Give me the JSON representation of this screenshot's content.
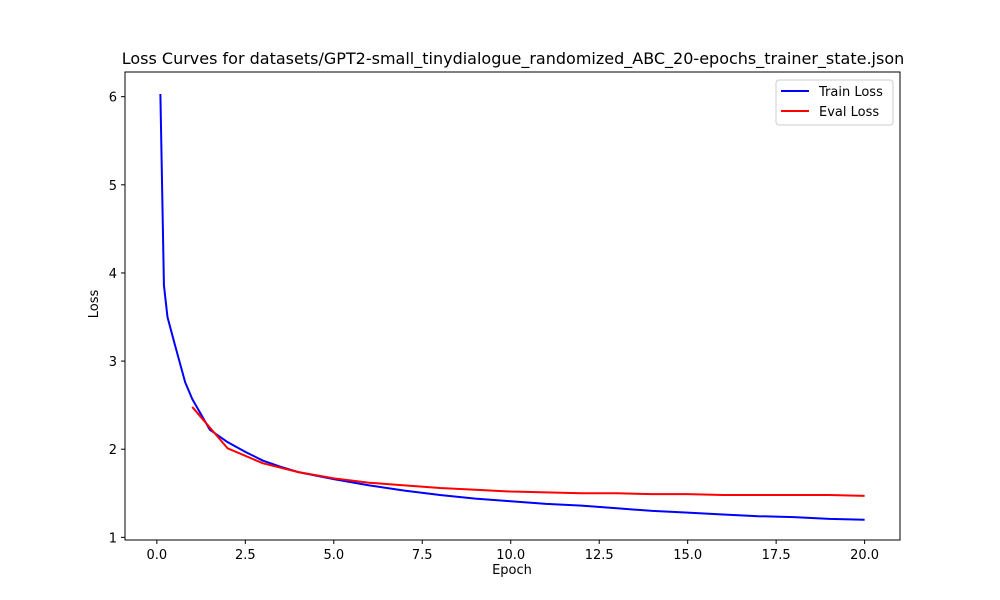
{
  "chart_data": {
    "type": "line",
    "title": "Loss Curves for datasets/GPT2-small_tinydialogue_randomized_ABC_20-epochs_trainer_state.json",
    "xlabel": "Epoch",
    "ylabel": "Loss",
    "xlim": [
      -0.9,
      21.0
    ],
    "ylim": [
      0.97,
      6.28
    ],
    "x_ticks": [
      0.0,
      2.5,
      5.0,
      7.5,
      10.0,
      12.5,
      15.0,
      17.5,
      20.0
    ],
    "x_tick_labels": [
      "0.0",
      "2.5",
      "5.0",
      "7.5",
      "10.0",
      "12.5",
      "15.0",
      "17.5",
      "20.0"
    ],
    "y_ticks": [
      1,
      2,
      3,
      4,
      5,
      6
    ],
    "y_tick_labels": [
      "1",
      "2",
      "3",
      "4",
      "5",
      "6"
    ],
    "grid": false,
    "legend_position": "top-right",
    "series": [
      {
        "name": "Train Loss",
        "color": "#0000ff",
        "x": [
          0.1,
          0.2,
          0.3,
          0.5,
          0.8,
          1.0,
          1.5,
          2.0,
          2.5,
          3.0,
          3.5,
          4.0,
          4.5,
          5.0,
          6.0,
          7.0,
          8.0,
          9.0,
          10.0,
          11.0,
          12.0,
          13.0,
          14.0,
          15.0,
          16.0,
          17.0,
          18.0,
          19.0,
          20.0
        ],
        "values": [
          6.03,
          3.86,
          3.5,
          3.2,
          2.76,
          2.57,
          2.22,
          2.08,
          1.97,
          1.87,
          1.8,
          1.74,
          1.7,
          1.66,
          1.59,
          1.53,
          1.48,
          1.44,
          1.41,
          1.38,
          1.36,
          1.33,
          1.3,
          1.28,
          1.26,
          1.24,
          1.23,
          1.21,
          1.2
        ]
      },
      {
        "name": "Eval Loss",
        "color": "#ff0000",
        "x": [
          1.0,
          2.0,
          3.0,
          4.0,
          5.0,
          6.0,
          7.0,
          8.0,
          9.0,
          10.0,
          11.0,
          12.0,
          13.0,
          14.0,
          15.0,
          16.0,
          17.0,
          18.0,
          19.0,
          20.0
        ],
        "values": [
          2.48,
          2.01,
          1.84,
          1.74,
          1.67,
          1.62,
          1.59,
          1.56,
          1.54,
          1.52,
          1.51,
          1.5,
          1.5,
          1.49,
          1.49,
          1.48,
          1.48,
          1.48,
          1.48,
          1.47
        ]
      }
    ]
  }
}
